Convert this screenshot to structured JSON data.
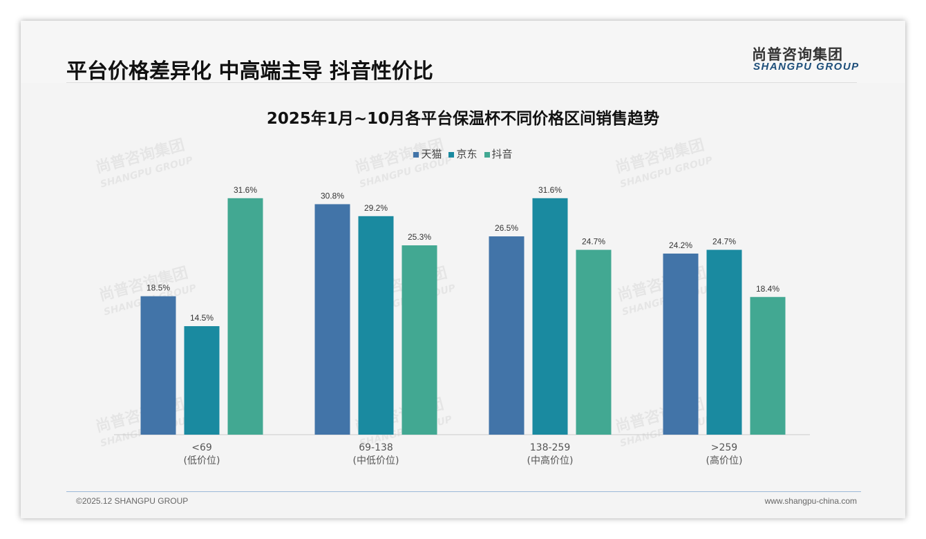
{
  "header": {
    "title": "平台价格差异化 中高端主导 抖音性价比",
    "logo_cn": "尚普咨询集团",
    "logo_en": "SHANGPU GROUP"
  },
  "footer": {
    "copyright": "©2025.12 SHANGPU GROUP",
    "website": "www.shangpu-china.com"
  },
  "chart_data": {
    "type": "bar",
    "title": "2025年1月~10月各平台保温杯不同价格区间销售趋势",
    "categories": [
      "<69",
      "69-138",
      "138-259",
      ">259"
    ],
    "category_sublabels": [
      "(低价位)",
      "(中低价位)",
      "(中高价位)",
      "(高价位)"
    ],
    "series": [
      {
        "name": "天猫",
        "color": "#4274a8",
        "values": [
          18.5,
          30.8,
          26.5,
          24.2
        ]
      },
      {
        "name": "京东",
        "color": "#1a8aa0",
        "values": [
          14.5,
          29.2,
          31.6,
          24.7
        ]
      },
      {
        "name": "抖音",
        "color": "#42a892",
        "values": [
          31.6,
          25.3,
          24.7,
          18.4
        ]
      }
    ],
    "value_suffix": "%",
    "ylim": [
      0,
      35
    ],
    "legend": "top-center",
    "grid": false
  }
}
